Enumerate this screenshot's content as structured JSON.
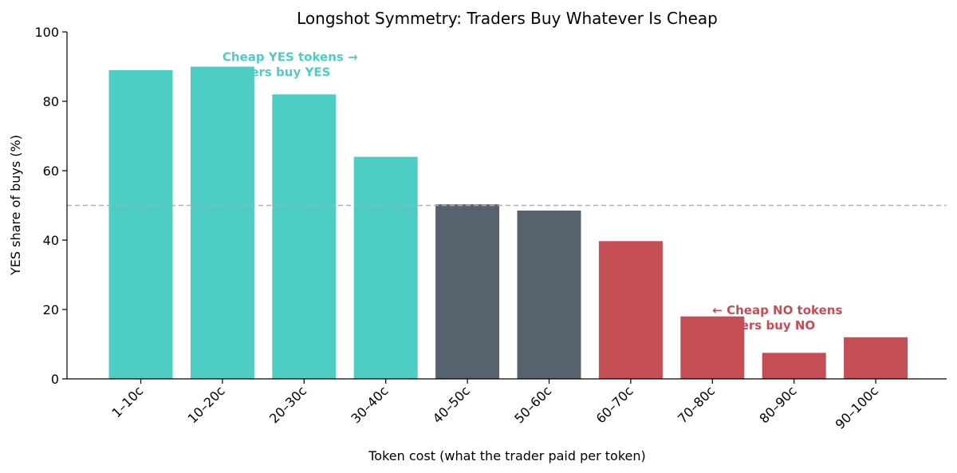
{
  "chart_data": {
    "type": "bar",
    "title": "Longshot Symmetry: Traders Buy Whatever Is Cheap",
    "xlabel": "Token cost (what the trader paid per token)",
    "ylabel": "YES share of buys (%)",
    "ylim": [
      0,
      100
    ],
    "yticks": [
      0,
      20,
      40,
      60,
      80,
      100
    ],
    "categories": [
      "1–10c",
      "10–20c",
      "20–30c",
      "30–40c",
      "40–50c",
      "50–60c",
      "60–70c",
      "70–80c",
      "80–90c",
      "90–100c"
    ],
    "values": [
      89,
      90,
      82,
      64,
      50.3,
      48.5,
      39.7,
      18,
      7.5,
      12
    ],
    "bar_colors": [
      "#4ecdc4",
      "#4ecdc4",
      "#4ecdc4",
      "#4ecdc4",
      "#56636f",
      "#56636f",
      "#c44d56",
      "#c44d56",
      "#c44d56",
      "#c44d56"
    ],
    "reference_line": {
      "y": 50,
      "style": "dashed",
      "color": "#b0b0b0"
    },
    "grid": false,
    "annotations": [
      {
        "lines": [
          "Cheap YES tokens →",
          "traders buy YES"
        ],
        "color": "#4ecdc4",
        "anchor_category": "10–20c",
        "y": 93
      },
      {
        "lines": [
          "← Cheap NO tokens",
          "traders buy NO"
        ],
        "color": "#c44d56",
        "anchor_category": "70–80c",
        "y": 20
      }
    ]
  }
}
